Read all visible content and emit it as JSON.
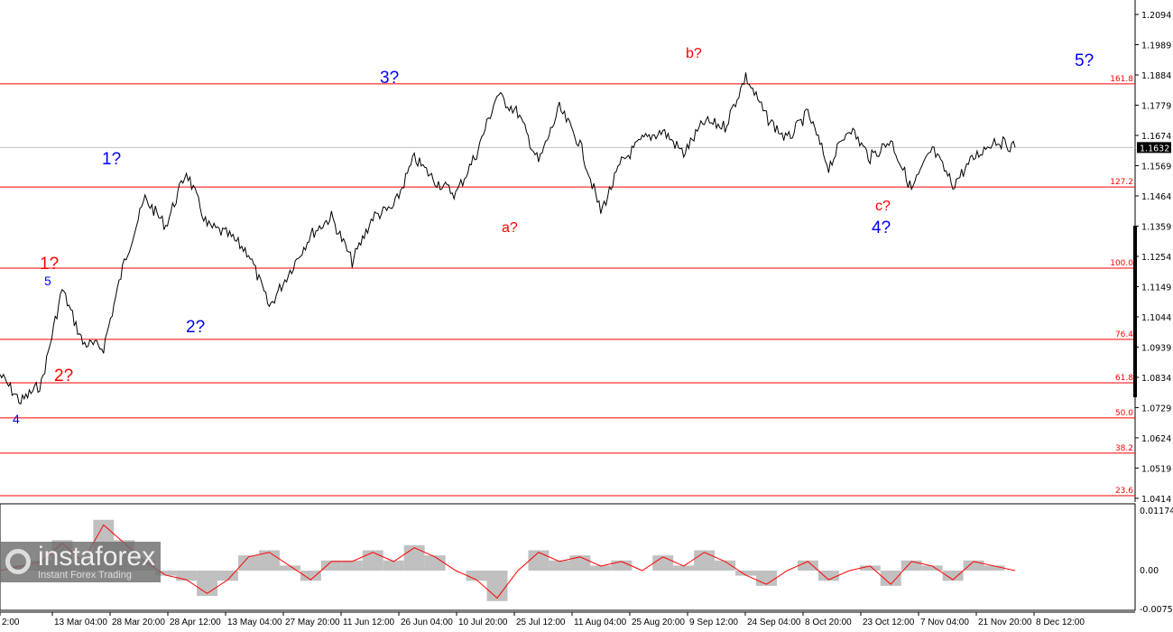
{
  "chart_data": {
    "type": "line",
    "price_axis": {
      "ticks": [
        1.2094,
        1.1989,
        1.1884,
        1.1779,
        1.1674,
        1.1569,
        1.1464,
        1.1359,
        1.1254,
        1.1149,
        1.1044,
        1.0939,
        1.0834,
        1.0729,
        1.0624,
        1.0519,
        1.0414
      ],
      "range": [
        1.0414,
        1.2094
      ]
    },
    "current_price": "1.1632",
    "current_price_value": 1.1632,
    "x_ticks": [
      "2:00",
      "13 Mar 04:00",
      "28 Mar 20:00",
      "28 Apr 12:00",
      "13 May 04:00",
      "27 May 20:00",
      "11 Jun 12:00",
      "26 Jun 04:00",
      "10 Jul 20:00",
      "25 Jul 12:00",
      "11 Aug 04:00",
      "25 Aug 20:00",
      "9 Sep 12:00",
      "24 Sep 04:00",
      "8 Oct 20:00",
      "23 Oct 12:00",
      "7 Nov 04:00",
      "21 Nov 20:00",
      "8 Dec 12:00"
    ],
    "price_path": [
      1.0843,
      1.0749,
      1.0812,
      1.1141,
      1.0953,
      1.0937,
      1.1235,
      1.1455,
      1.136,
      1.1549,
      1.136,
      1.1329,
      1.1266,
      1.1078,
      1.1204,
      1.1329,
      1.1392,
      1.1235,
      1.1392,
      1.1423,
      1.1596,
      1.1517,
      1.147,
      1.1611,
      1.1815,
      1.1752,
      1.158,
      1.1768,
      1.1643,
      1.1408,
      1.158,
      1.1658,
      1.169,
      1.1611,
      1.1721,
      1.1705,
      1.1878,
      1.1737,
      1.1658,
      1.1752,
      1.1564,
      1.1705,
      1.1596,
      1.1658,
      1.1486,
      1.1627,
      1.1502,
      1.1596,
      1.1658,
      1.1632
    ],
    "fib_levels": [
      {
        "label": "161.8",
        "price": 1.1853
      },
      {
        "label": "127.2",
        "price": 1.1495
      },
      {
        "label": "100.0",
        "price": 1.1213
      },
      {
        "label": "76.4",
        "price": 1.0966
      },
      {
        "label": "61.8",
        "price": 1.0815
      },
      {
        "label": "50.0",
        "price": 1.0693
      },
      {
        "label": "38.2",
        "price": 1.0571
      },
      {
        "label": "23.6",
        "price": 1.0423
      }
    ],
    "oscillator": {
      "ticks": [
        "0.01174",
        "0.00",
        "-0.00759"
      ],
      "range": [
        -0.00759,
        0.01174
      ],
      "values": [
        0,
        0.001,
        0.002,
        0.006,
        0.002,
        0.01,
        0.006,
        0.002,
        -0.001,
        -0.002,
        -0.005,
        -0.002,
        0.003,
        0.004,
        0.001,
        -0.002,
        0.002,
        0.002,
        0.004,
        0.002,
        0.005,
        0.003,
        0,
        -0.002,
        -0.006,
        0,
        0.004,
        0.002,
        0.003,
        0.001,
        0.002,
        0,
        0.003,
        0.001,
        0.004,
        0.002,
        -0.001,
        -0.003,
        0,
        0.002,
        -0.002,
        0,
        0.001,
        -0.003,
        0.002,
        0.001,
        -0.002,
        0.002,
        0.001,
        0
      ]
    },
    "colors": {
      "price": "#000000",
      "fib": "#ff0000",
      "osc_hist": "#c0c0c0",
      "osc_signal": "#ff0000",
      "wave_primary": "#0000ff",
      "wave_corrective": "#ff0000"
    }
  },
  "wave_labels": {
    "w4_left": "4",
    "w5_small": "5",
    "w1_red": "1?",
    "w2_red": "2?",
    "w1_blue": "1?",
    "w2_blue": "2?",
    "w3": "3?",
    "a": "a?",
    "b": "b?",
    "c": "c?",
    "w4": "4?",
    "w5": "5?"
  },
  "logo": {
    "name": "instaforex",
    "tagline": "Instant Forex Trading"
  }
}
